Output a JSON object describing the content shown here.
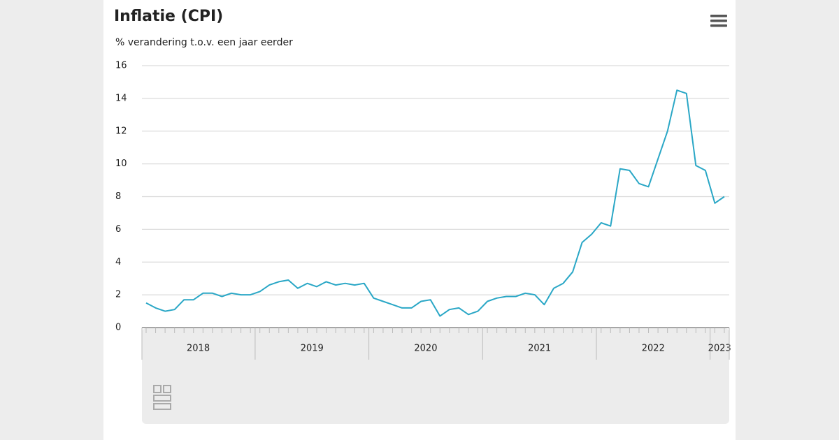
{
  "chart_data": {
    "type": "line",
    "title": "Inflatie (CPI)",
    "subtitle": "% verandering t.o.v. een jaar eerder",
    "categories": [
      null,
      null,
      null,
      null,
      null,
      null,
      "2018",
      null,
      null,
      null,
      null,
      null,
      null,
      null,
      null,
      null,
      null,
      null,
      "2019",
      null,
      null,
      null,
      null,
      null,
      null,
      null,
      null,
      null,
      null,
      null,
      "2020",
      null,
      null,
      null,
      null,
      null,
      null,
      null,
      null,
      null,
      null,
      null,
      "2021",
      null,
      null,
      null,
      null,
      null,
      null,
      null,
      null,
      null,
      null,
      null,
      "2022",
      null,
      null,
      null,
      null,
      null,
      "2023",
      null
    ],
    "series": [
      {
        "color": "#2aa7c6",
        "values": [
          1.5,
          1.2,
          1.0,
          1.1,
          1.7,
          1.7,
          2.1,
          2.1,
          1.9,
          2.1,
          2.0,
          2.0,
          2.2,
          2.6,
          2.8,
          2.9,
          2.4,
          2.7,
          2.5,
          2.8,
          2.6,
          2.7,
          2.6,
          2.7,
          1.8,
          1.6,
          1.4,
          1.2,
          1.2,
          1.6,
          1.7,
          0.7,
          1.1,
          1.2,
          0.8,
          1.0,
          1.6,
          1.8,
          1.9,
          1.9,
          2.1,
          2.0,
          1.4,
          2.4,
          2.7,
          3.4,
          5.2,
          5.7,
          6.4,
          6.2,
          9.7,
          9.6,
          8.8,
          8.6,
          10.3,
          12.0,
          14.5,
          14.3,
          9.9,
          9.6,
          7.6,
          8.0
        ]
      }
    ],
    "ylim": [
      0,
      16
    ],
    "yticks": [
      0,
      2,
      4,
      6,
      8,
      10,
      12,
      14,
      16
    ],
    "grid": true
  }
}
